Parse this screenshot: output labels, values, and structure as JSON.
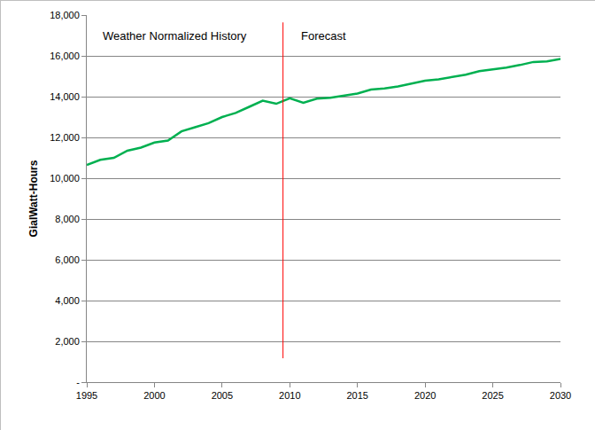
{
  "chart_data": {
    "type": "line",
    "y_label": "GialWatt-Hours",
    "x": [
      1995,
      1996,
      1997,
      1998,
      1999,
      2000,
      2001,
      2002,
      2003,
      2004,
      2005,
      2006,
      2007,
      2008,
      2009,
      2010,
      2011,
      2012,
      2013,
      2014,
      2015,
      2016,
      2017,
      2018,
      2019,
      2020,
      2021,
      2022,
      2023,
      2024,
      2025,
      2026,
      2027,
      2028,
      2029,
      2030
    ],
    "values": [
      10650,
      10900,
      11000,
      11350,
      11500,
      11750,
      11850,
      12300,
      12500,
      12700,
      13000,
      13200,
      13500,
      13800,
      13650,
      13920,
      13700,
      13900,
      13950,
      14050,
      14150,
      14350,
      14400,
      14500,
      14650,
      14780,
      14850,
      14950,
      15080,
      15250,
      15320,
      15420,
      15550,
      15700,
      15730,
      15850
    ],
    "color": "#00b050",
    "xlim": [
      1995,
      2030
    ],
    "xticks": [
      1995,
      2000,
      2005,
      2010,
      2015,
      2020,
      2025,
      2030
    ],
    "ylim": [
      0,
      18000
    ],
    "yticks": [
      {
        "value": 0,
        "label": "-"
      },
      {
        "value": 2000,
        "label": "2,000"
      },
      {
        "value": 4000,
        "label": "4,000"
      },
      {
        "value": 6000,
        "label": "6,000"
      },
      {
        "value": 8000,
        "label": "8,000"
      },
      {
        "value": 10000,
        "label": "10,000"
      },
      {
        "value": 12000,
        "label": "12,000"
      },
      {
        "value": 14000,
        "label": "14,000"
      },
      {
        "value": 16000,
        "label": "16,000"
      },
      {
        "value": 18000,
        "label": "18,000"
      }
    ],
    "grid": true,
    "divider": {
      "x": 2009.5,
      "color": "#ff0000"
    },
    "annotations": [
      {
        "text": "Weather Normalized History",
        "x": 2001.5,
        "y": 17000
      },
      {
        "text": "Forecast",
        "x": 2012.5,
        "y": 17000
      }
    ]
  }
}
